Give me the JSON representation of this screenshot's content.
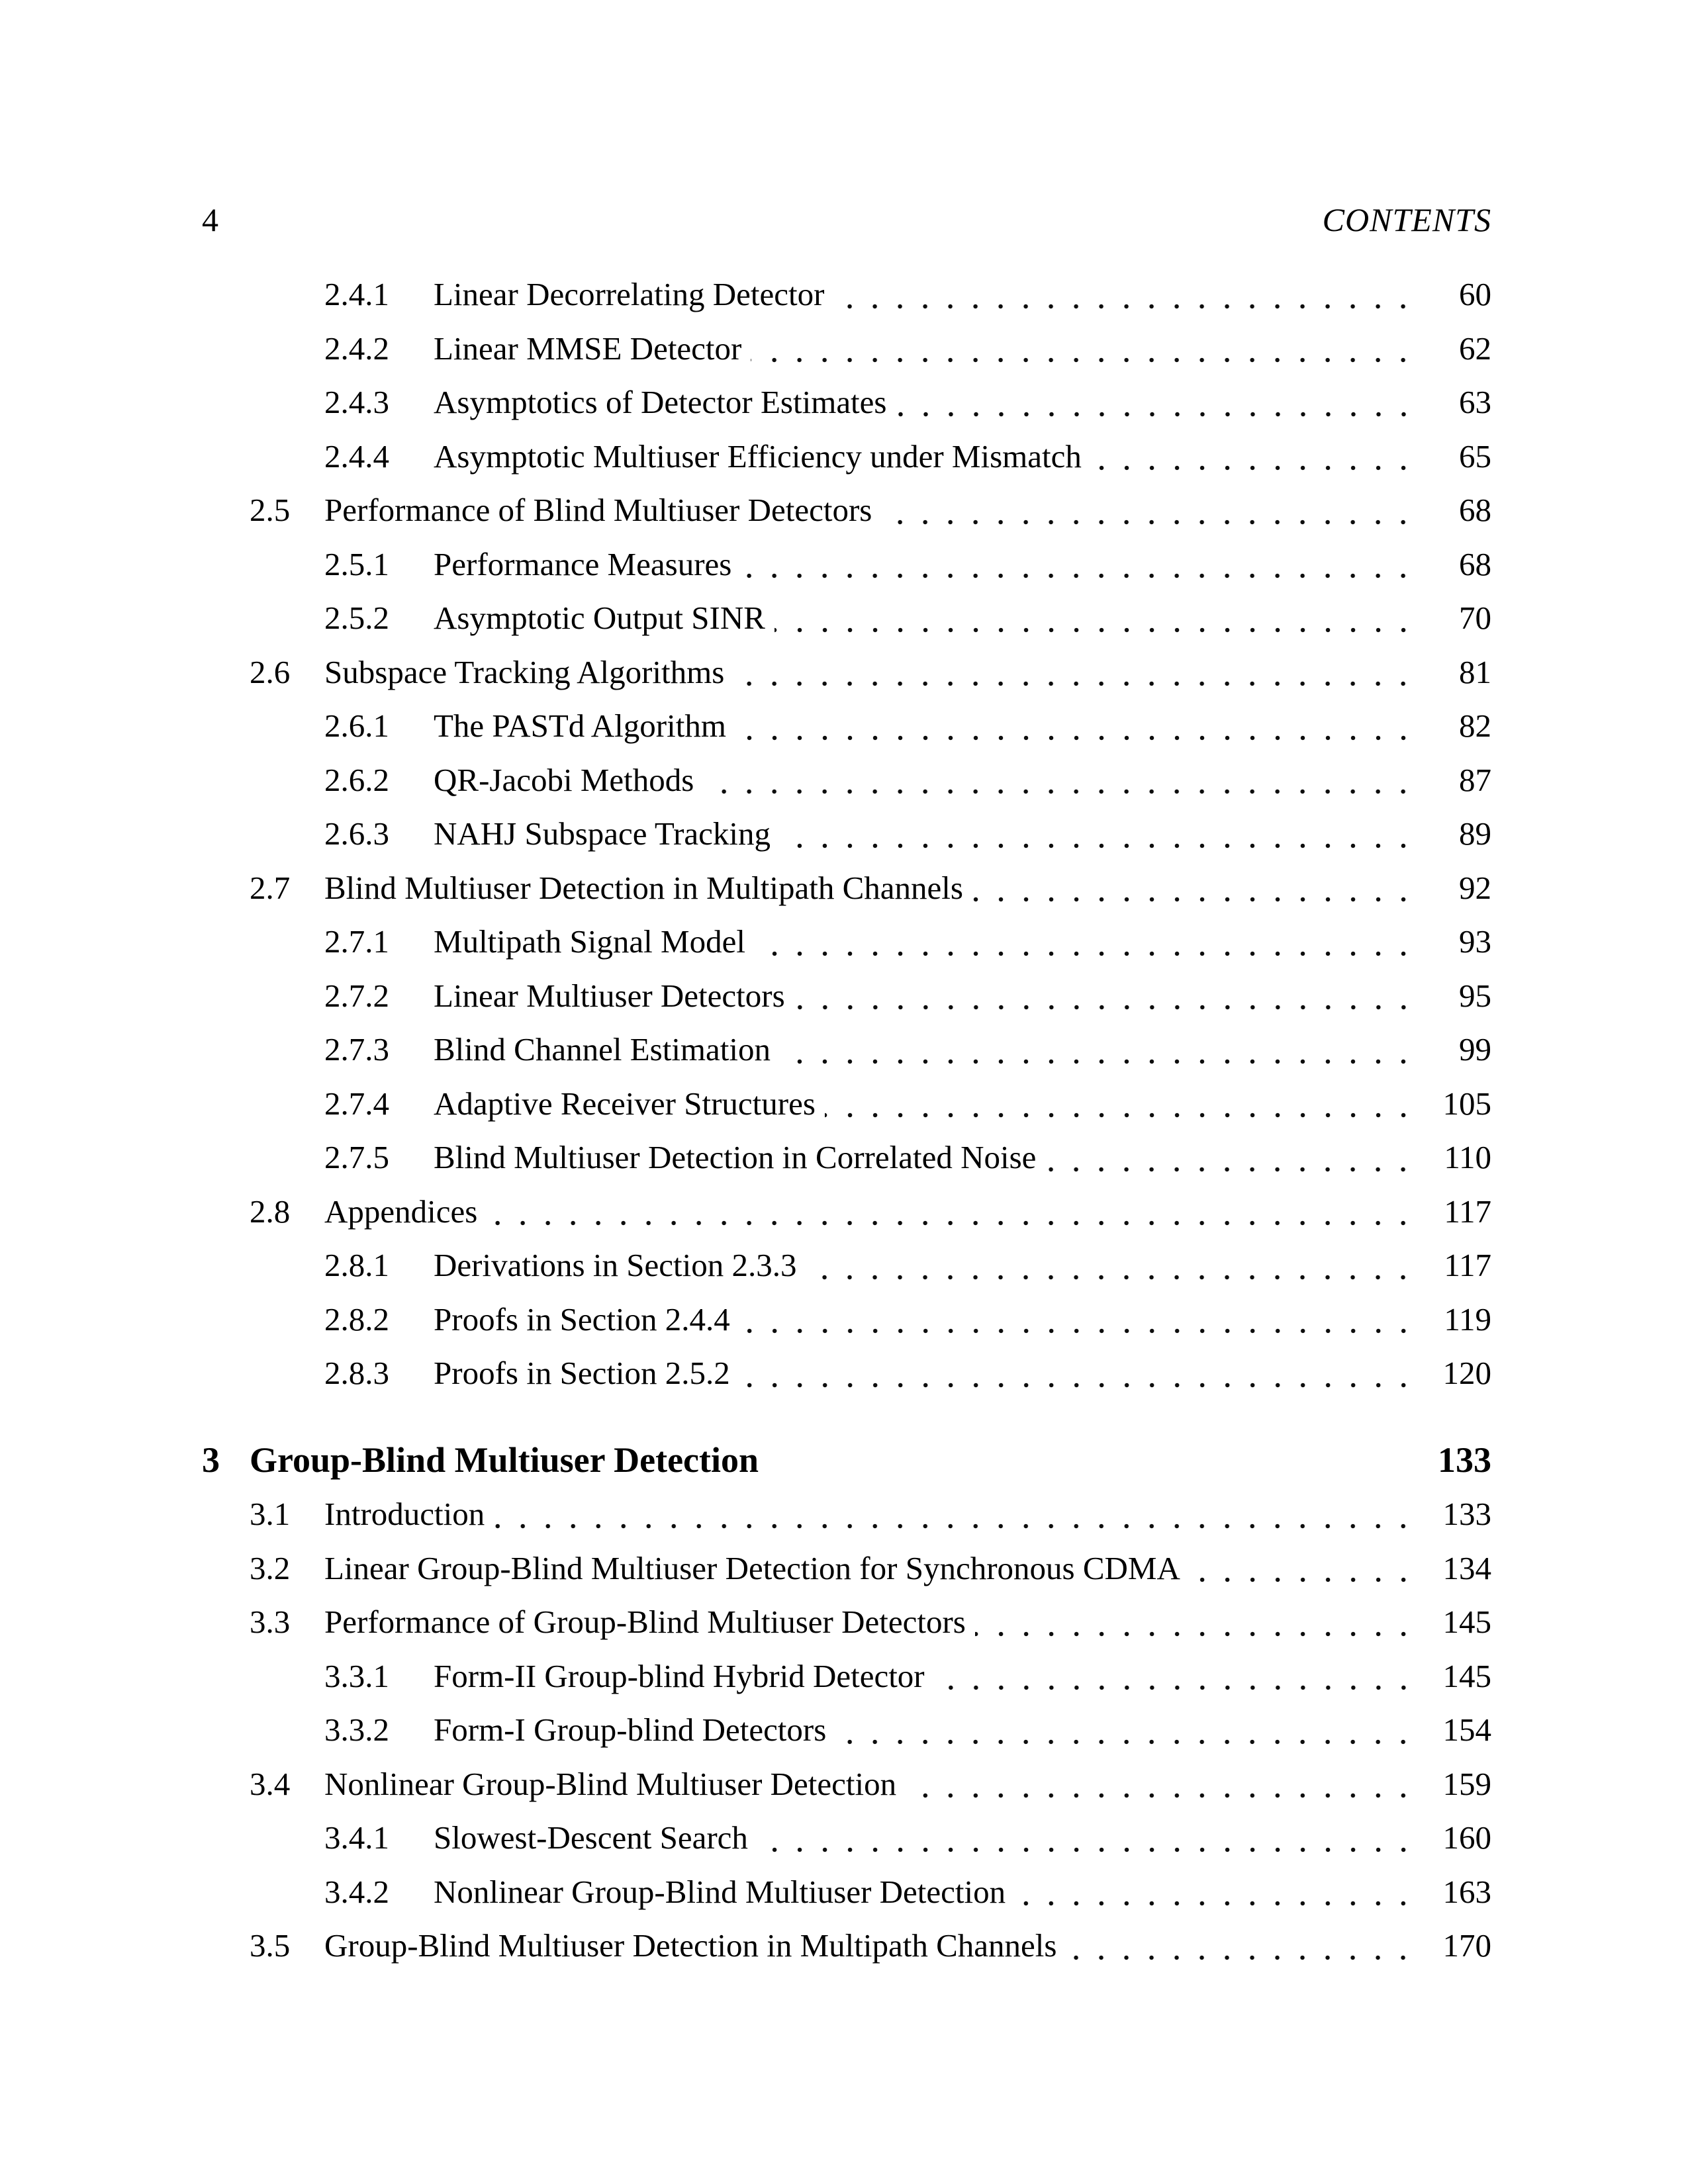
{
  "header": {
    "page_number": "4",
    "running_title": "CONTENTS"
  },
  "toc": {
    "entries": [
      {
        "level": "subsection",
        "number": "2.4.1",
        "title": "Linear Decorrelating Detector",
        "page": "60"
      },
      {
        "level": "subsection",
        "number": "2.4.2",
        "title": "Linear MMSE Detector",
        "page": "62"
      },
      {
        "level": "subsection",
        "number": "2.4.3",
        "title": "Asymptotics of Detector Estimates",
        "page": "63"
      },
      {
        "level": "subsection",
        "number": "2.4.4",
        "title": "Asymptotic Multiuser Efficiency under Mismatch",
        "page": "65"
      },
      {
        "level": "section",
        "number": "2.5",
        "title": "Performance of Blind Multiuser Detectors",
        "page": "68"
      },
      {
        "level": "subsection",
        "number": "2.5.1",
        "title": "Performance Measures",
        "page": "68"
      },
      {
        "level": "subsection",
        "number": "2.5.2",
        "title": "Asymptotic Output SINR",
        "page": "70"
      },
      {
        "level": "section",
        "number": "2.6",
        "title": "Subspace Tracking Algorithms",
        "page": "81"
      },
      {
        "level": "subsection",
        "number": "2.6.1",
        "title": "The PASTd Algorithm",
        "page": "82"
      },
      {
        "level": "subsection",
        "number": "2.6.2",
        "title": "QR-Jacobi Methods",
        "page": "87"
      },
      {
        "level": "subsection",
        "number": "2.6.3",
        "title": "NAHJ Subspace Tracking",
        "page": "89"
      },
      {
        "level": "section",
        "number": "2.7",
        "title": "Blind Multiuser Detection in Multipath Channels",
        "page": "92"
      },
      {
        "level": "subsection",
        "number": "2.7.1",
        "title": "Multipath Signal Model",
        "page": "93"
      },
      {
        "level": "subsection",
        "number": "2.7.2",
        "title": "Linear Multiuser Detectors",
        "page": "95"
      },
      {
        "level": "subsection",
        "number": "2.7.3",
        "title": "Blind Channel Estimation",
        "page": "99"
      },
      {
        "level": "subsection",
        "number": "2.7.4",
        "title": "Adaptive Receiver Structures",
        "page": "105"
      },
      {
        "level": "subsection",
        "number": "2.7.5",
        "title": "Blind Multiuser Detection in Correlated Noise",
        "page": "110"
      },
      {
        "level": "section",
        "number": "2.8",
        "title": "Appendices",
        "page": "117"
      },
      {
        "level": "subsection",
        "number": "2.8.1",
        "title": "Derivations in Section 2.3.3",
        "page": "117"
      },
      {
        "level": "subsection",
        "number": "2.8.2",
        "title": "Proofs in Section 2.4.4",
        "page": "119"
      },
      {
        "level": "subsection",
        "number": "2.8.3",
        "title": "Proofs in Section 2.5.2",
        "page": "120"
      },
      {
        "level": "chapter",
        "number": "3",
        "title": "Group-Blind Multiuser Detection",
        "page": "133"
      },
      {
        "level": "section",
        "number": "3.1",
        "title": "Introduction",
        "page": "133"
      },
      {
        "level": "section",
        "number": "3.2",
        "title": "Linear Group-Blind Multiuser Detection for Synchronous CDMA",
        "page": "134"
      },
      {
        "level": "section",
        "number": "3.3",
        "title": "Performance of Group-Blind Multiuser Detectors",
        "page": "145"
      },
      {
        "level": "subsection",
        "number": "3.3.1",
        "title": "Form-II Group-blind Hybrid Detector",
        "page": "145"
      },
      {
        "level": "subsection",
        "number": "3.3.2",
        "title": "Form-I Group-blind Detectors",
        "page": "154"
      },
      {
        "level": "section",
        "number": "3.4",
        "title": "Nonlinear Group-Blind Multiuser Detection",
        "page": "159"
      },
      {
        "level": "subsection",
        "number": "3.4.1",
        "title": "Slowest-Descent Search",
        "page": "160"
      },
      {
        "level": "subsection",
        "number": "3.4.2",
        "title": "Nonlinear Group-Blind Multiuser Detection",
        "page": "163"
      },
      {
        "level": "section",
        "number": "3.5",
        "title": "Group-Blind Multiuser Detection in Multipath Channels",
        "page": "170"
      }
    ]
  }
}
